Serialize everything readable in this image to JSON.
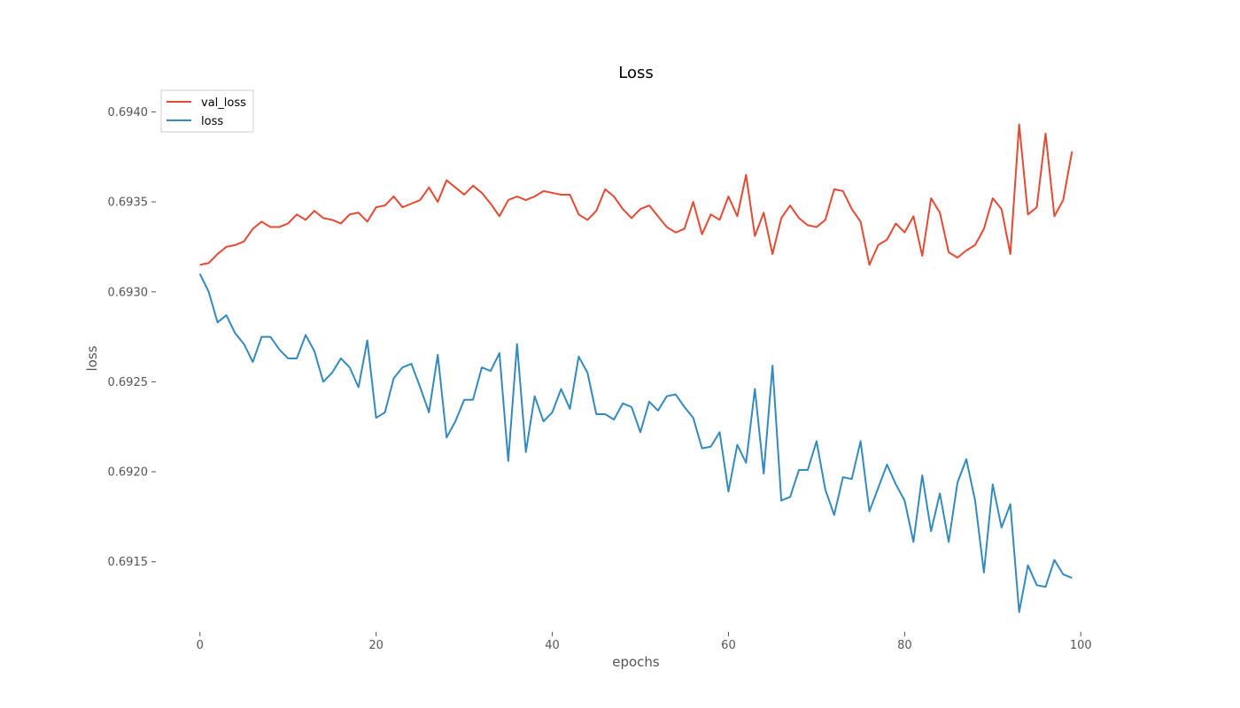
{
  "chart_data": {
    "type": "line",
    "title": "Loss",
    "xlabel": "epochs",
    "ylabel": "loss",
    "xlim": [
      -5,
      105
    ],
    "ylim": [
      0.69112,
      0.69413
    ],
    "xticks": [
      0,
      20,
      40,
      60,
      80,
      100
    ],
    "xtick_labels": [
      "0",
      "20",
      "40",
      "60",
      "80",
      "100"
    ],
    "yticks": [
      0.6915,
      0.692,
      0.6925,
      0.693,
      0.6935,
      0.694
    ],
    "ytick_labels": [
      "0.6915",
      "0.6920",
      "0.6925",
      "0.6930",
      "0.6935",
      "0.6940"
    ],
    "grid": false,
    "legend_position": "top-left",
    "x": [
      0,
      1,
      2,
      3,
      4,
      5,
      6,
      7,
      8,
      9,
      10,
      11,
      12,
      13,
      14,
      15,
      16,
      17,
      18,
      19,
      20,
      21,
      22,
      23,
      24,
      25,
      26,
      27,
      28,
      29,
      30,
      31,
      32,
      33,
      34,
      35,
      36,
      37,
      38,
      39,
      40,
      41,
      42,
      43,
      44,
      45,
      46,
      47,
      48,
      49,
      50,
      51,
      52,
      53,
      54,
      55,
      56,
      57,
      58,
      59,
      60,
      61,
      62,
      63,
      64,
      65,
      66,
      67,
      68,
      69,
      70,
      71,
      72,
      73,
      74,
      75,
      76,
      77,
      78,
      79,
      80,
      81,
      82,
      83,
      84,
      85,
      86,
      87,
      88,
      89,
      90,
      91,
      92,
      93,
      94,
      95,
      96,
      97,
      98,
      99
    ],
    "series": [
      {
        "name": "val_loss",
        "color": "#E24A33",
        "values": [
          0.69315,
          0.69316,
          0.69321,
          0.69325,
          0.69326,
          0.69328,
          0.69335,
          0.69339,
          0.69336,
          0.69336,
          0.69338,
          0.69343,
          0.6934,
          0.69345,
          0.69341,
          0.6934,
          0.69338,
          0.69343,
          0.69344,
          0.69339,
          0.69347,
          0.69348,
          0.69353,
          0.69347,
          0.69349,
          0.69351,
          0.69358,
          0.6935,
          0.69362,
          0.69358,
          0.69354,
          0.69359,
          0.69355,
          0.69349,
          0.69342,
          0.69351,
          0.69353,
          0.69351,
          0.69353,
          0.69356,
          0.69355,
          0.69354,
          0.69354,
          0.69343,
          0.6934,
          0.69345,
          0.69357,
          0.69353,
          0.69346,
          0.69341,
          0.69346,
          0.69348,
          0.69342,
          0.69336,
          0.69333,
          0.69335,
          0.6935,
          0.69332,
          0.69343,
          0.6934,
          0.69353,
          0.69342,
          0.69365,
          0.69331,
          0.69344,
          0.69321,
          0.69341,
          0.69348,
          0.69341,
          0.69337,
          0.69336,
          0.6934,
          0.69357,
          0.69356,
          0.69346,
          0.69339,
          0.69315,
          0.69326,
          0.69329,
          0.69338,
          0.69333,
          0.69342,
          0.6932,
          0.69352,
          0.69344,
          0.69322,
          0.69319,
          0.69323,
          0.69326,
          0.69335,
          0.69352,
          0.69346,
          0.69321,
          0.69393,
          0.69343,
          0.69347,
          0.69388,
          0.69342,
          0.69351,
          0.69378
        ]
      },
      {
        "name": "loss",
        "color": "#348ABD",
        "values": [
          0.6931,
          0.693,
          0.69283,
          0.69287,
          0.69277,
          0.69271,
          0.69261,
          0.69275,
          0.69275,
          0.69268,
          0.69263,
          0.69263,
          0.69276,
          0.69267,
          0.6925,
          0.69255,
          0.69263,
          0.69258,
          0.69247,
          0.69273,
          0.6923,
          0.69233,
          0.69252,
          0.69258,
          0.6926,
          0.69247,
          0.69233,
          0.69265,
          0.69219,
          0.69228,
          0.6924,
          0.6924,
          0.69258,
          0.69256,
          0.69266,
          0.69206,
          0.69271,
          0.69211,
          0.69242,
          0.69228,
          0.69233,
          0.69246,
          0.69235,
          0.69264,
          0.69255,
          0.69232,
          0.69232,
          0.69229,
          0.69238,
          0.69236,
          0.69222,
          0.69239,
          0.69234,
          0.69242,
          0.69243,
          0.69236,
          0.6923,
          0.69213,
          0.69214,
          0.69222,
          0.69189,
          0.69215,
          0.69205,
          0.69246,
          0.69199,
          0.69259,
          0.69184,
          0.69186,
          0.69201,
          0.69201,
          0.69217,
          0.6919,
          0.69176,
          0.69197,
          0.69196,
          0.69217,
          0.69178,
          0.69191,
          0.69204,
          0.69193,
          0.69184,
          0.69161,
          0.69198,
          0.69167,
          0.69188,
          0.69161,
          0.69194,
          0.69207,
          0.69184,
          0.69144,
          0.69193,
          0.69169,
          0.69182,
          0.69122,
          0.69148,
          0.69137,
          0.69136,
          0.69151,
          0.69143,
          0.69141
        ]
      }
    ]
  }
}
